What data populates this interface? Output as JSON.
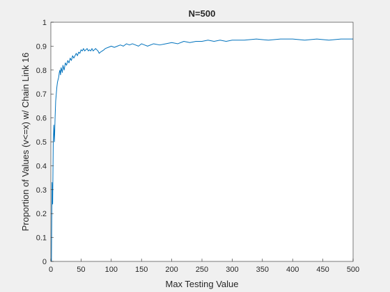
{
  "chart_data": {
    "type": "line",
    "title": "N=500",
    "xlabel": "Max Testing Value",
    "ylabel": "Proportion of Values (v<=x) w/ Chain Link 16",
    "xlim": [
      0,
      500
    ],
    "ylim": [
      0,
      1
    ],
    "xticks": [
      0,
      50,
      100,
      150,
      200,
      250,
      300,
      350,
      400,
      450,
      500
    ],
    "yticks": [
      0,
      0.1,
      0.2,
      0.3,
      0.4,
      0.5,
      0.6,
      0.7,
      0.8,
      0.9,
      1
    ],
    "grid": false,
    "series": [
      {
        "color": "#0072BD",
        "x": [
          1,
          2,
          3,
          4,
          5,
          6,
          7,
          8,
          9,
          10,
          11,
          12,
          13,
          14,
          15,
          16,
          17,
          18,
          19,
          20,
          22,
          24,
          26,
          28,
          30,
          32,
          34,
          36,
          38,
          40,
          42,
          44,
          46,
          48,
          50,
          52,
          54,
          56,
          58,
          60,
          62,
          64,
          66,
          68,
          70,
          72,
          74,
          76,
          78,
          80,
          82,
          85,
          88,
          90,
          95,
          100,
          105,
          110,
          115,
          120,
          125,
          130,
          135,
          140,
          145,
          150,
          155,
          160,
          170,
          180,
          190,
          200,
          210,
          220,
          230,
          240,
          250,
          260,
          270,
          280,
          290,
          300,
          320,
          340,
          360,
          380,
          400,
          420,
          440,
          460,
          480,
          500
        ],
        "y": [
          0.0,
          0.33,
          0.24,
          0.5,
          0.57,
          0.5,
          0.6,
          0.67,
          0.7,
          0.73,
          0.75,
          0.76,
          0.77,
          0.79,
          0.8,
          0.78,
          0.81,
          0.8,
          0.79,
          0.82,
          0.8,
          0.83,
          0.82,
          0.84,
          0.83,
          0.85,
          0.84,
          0.86,
          0.85,
          0.86,
          0.87,
          0.86,
          0.875,
          0.87,
          0.885,
          0.88,
          0.89,
          0.88,
          0.885,
          0.89,
          0.88,
          0.885,
          0.88,
          0.89,
          0.88,
          0.885,
          0.89,
          0.885,
          0.88,
          0.87,
          0.875,
          0.88,
          0.885,
          0.89,
          0.895,
          0.9,
          0.895,
          0.9,
          0.905,
          0.9,
          0.91,
          0.905,
          0.91,
          0.905,
          0.9,
          0.91,
          0.905,
          0.9,
          0.91,
          0.905,
          0.91,
          0.915,
          0.91,
          0.92,
          0.915,
          0.92,
          0.92,
          0.925,
          0.92,
          0.925,
          0.92,
          0.925,
          0.925,
          0.93,
          0.925,
          0.93,
          0.93,
          0.925,
          0.93,
          0.925,
          0.93,
          0.93
        ]
      }
    ]
  }
}
